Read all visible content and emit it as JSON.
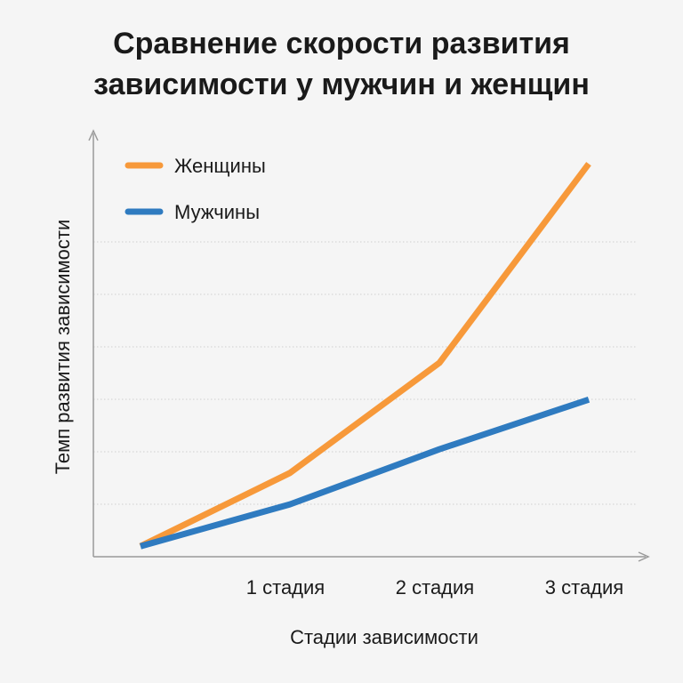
{
  "chart_data": {
    "type": "line",
    "title_lines": [
      "Сравнение скорости развития",
      "зависимости у мужчин и женщин"
    ],
    "xlabel": "Стадии зависимости",
    "ylabel": "Темп развития зависимости",
    "x_ticks": [
      "1 стадия",
      "2 стадия",
      "3 стадия"
    ],
    "x": [
      0,
      1,
      2,
      3
    ],
    "ylim": [
      0,
      8
    ],
    "grid": "horizontal-dotted",
    "legend_position": "top-left",
    "series": [
      {
        "name": "Женщины",
        "color": "#f7993a",
        "values": [
          0.2,
          1.6,
          3.7,
          7.5
        ]
      },
      {
        "name": "Мужчины",
        "color": "#2f7bc0",
        "values": [
          0.2,
          1.0,
          2.05,
          3.0
        ]
      }
    ]
  }
}
